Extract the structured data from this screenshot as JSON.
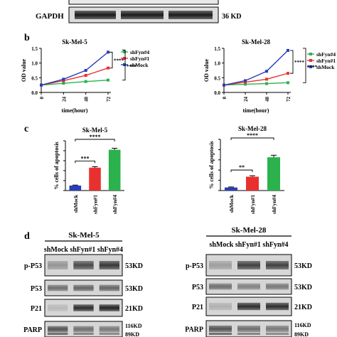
{
  "figure": {
    "top_blot": {
      "label": "GAPDH",
      "size": "36 KD"
    },
    "panel_b": {
      "letter": "b"
    },
    "panel_c": {
      "letter": "c"
    },
    "panel_d": {
      "letter": "d",
      "left": {
        "title": "Sk-Mel-5",
        "lanes": "shMock shFyn#1 shFyn#4",
        "rows": [
          {
            "label": "p-P53",
            "size": "53KD"
          },
          {
            "label": "P53",
            "size": "53KD"
          },
          {
            "label": "P21",
            "size": "21KD"
          },
          {
            "label": "PARP",
            "size": "116KD",
            "size2": "89KD"
          }
        ]
      },
      "right": {
        "title": "Sk-Mel-28",
        "lanes": "shMock shFyn#1 shFyn#4",
        "rows": [
          {
            "label": "p-P53",
            "size": "53KD"
          },
          {
            "label": "P53",
            "size": "53KD"
          },
          {
            "label": "P21",
            "size": "21KD"
          },
          {
            "label": "PARP",
            "size": "116KD",
            "size2": "89KD"
          }
        ]
      }
    }
  },
  "chart_data": [
    {
      "type": "line",
      "title": "Sk-Mel-5",
      "xlabel": "time(hour)",
      "ylabel": "OD value",
      "x": [
        0,
        24,
        48,
        72
      ],
      "ylim": [
        0,
        1.5
      ],
      "yticks": [
        "0.0",
        "0.5",
        "1.0",
        "1.5"
      ],
      "series": [
        {
          "name": "shFyn#4",
          "color": "#2bb24c",
          "values": [
            0.25,
            0.31,
            0.37,
            0.42
          ]
        },
        {
          "name": "shFyn#1",
          "color": "#e8312f",
          "values": [
            0.25,
            0.4,
            0.58,
            0.83
          ]
        },
        {
          "name": "shMock",
          "color": "#2a3db8",
          "values": [
            0.25,
            0.45,
            0.75,
            1.37
          ]
        }
      ],
      "significance": [
        "****",
        "****"
      ]
    },
    {
      "type": "line",
      "title": "Sk-Mel-28",
      "xlabel": "time(hour)",
      "ylabel": "OD value",
      "x": [
        0,
        24,
        48,
        72
      ],
      "ylim": [
        0,
        1.5
      ],
      "yticks": [
        "0.0",
        "0.5",
        "1.0",
        "1.5"
      ],
      "series": [
        {
          "name": "shFyn#4",
          "color": "#2bb24c",
          "values": [
            0.25,
            0.28,
            0.3,
            0.33
          ]
        },
        {
          "name": "shFyn#1",
          "color": "#e8312f",
          "values": [
            0.25,
            0.35,
            0.45,
            0.65
          ]
        },
        {
          "name": "shMock",
          "color": "#2a3db8",
          "values": [
            0.25,
            0.4,
            0.72,
            1.43
          ]
        }
      ],
      "significance": [
        "****",
        "****"
      ]
    },
    {
      "type": "bar",
      "title": "Sk-Mel-5",
      "ylabel": "% cells of apoptosis",
      "categories": [
        "shMock",
        "shFyn#1",
        "shFyn#4"
      ],
      "colors": [
        "#2a3db8",
        "#e8312f",
        "#2bb24c"
      ],
      "values": [
        1.0,
        4.6,
        8.2
      ],
      "errors": [
        0.1,
        0.2,
        0.3
      ],
      "ylim": [
        0,
        10
      ],
      "significance": [
        {
          "from": 0,
          "to": 1,
          "label": "***"
        },
        {
          "from": 0,
          "to": 2,
          "label": "****"
        }
      ]
    },
    {
      "type": "bar",
      "title": "Sk-Mel-28",
      "ylabel": "% cells of apoptosis",
      "categories": [
        "shMock",
        "shFyn#1",
        "shFyn#4"
      ],
      "colors": [
        "#2a3db8",
        "#e8312f",
        "#2bb24c"
      ],
      "values": [
        0.6,
        2.7,
        6.5
      ],
      "errors": [
        0.1,
        0.2,
        0.4
      ],
      "ylim": [
        0,
        10
      ],
      "significance": [
        {
          "from": 0,
          "to": 1,
          "label": "**"
        },
        {
          "from": 0,
          "to": 2,
          "label": "****"
        }
      ]
    }
  ]
}
